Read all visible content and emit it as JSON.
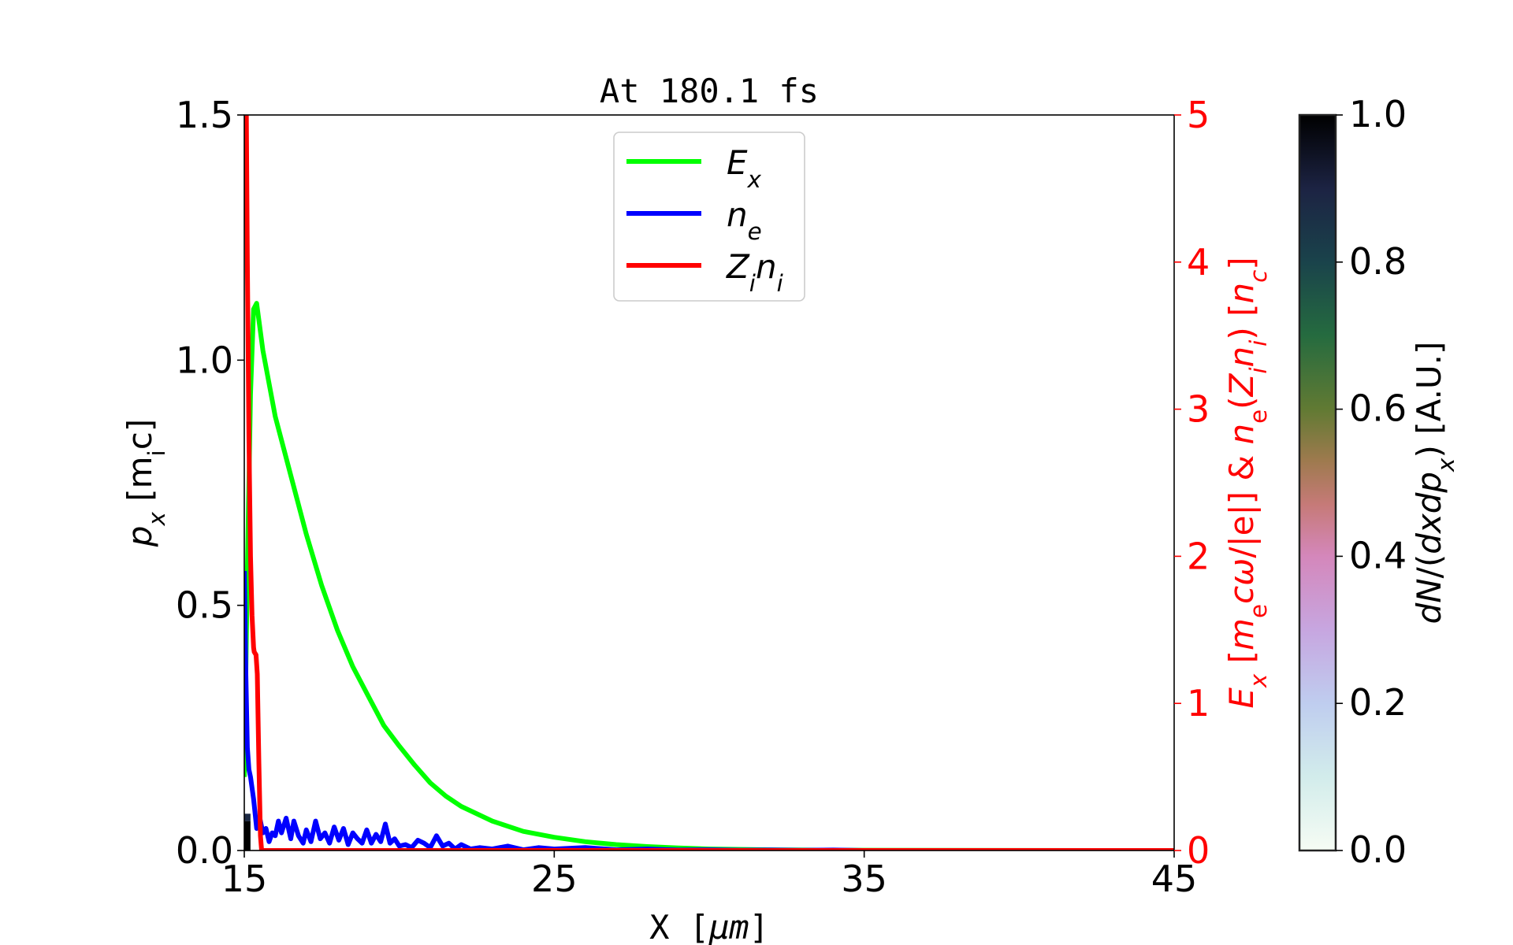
{
  "chart_data": {
    "type": "line",
    "title": "At 180.1 fs",
    "xlabel": [
      {
        "t": "X  ["
      },
      {
        "t": "μm",
        "it": true
      },
      {
        "t": "]"
      }
    ],
    "ylabel_left": [
      {
        "t": "p",
        "it": true
      },
      {
        "t": "x",
        "it": true,
        "sub": true
      },
      {
        "t": "  [m"
      },
      {
        "t": "i",
        "sub": true
      },
      {
        "t": "c]"
      }
    ],
    "ylabel_right": [
      {
        "t": "E",
        "it": true
      },
      {
        "t": "x",
        "it": true,
        "sub": true
      },
      {
        "t": "  ["
      },
      {
        "t": "m",
        "it": true
      },
      {
        "t": "e",
        "sub": true
      },
      {
        "t": "cω",
        "it": true
      },
      {
        "t": "/|e|]  &  "
      },
      {
        "t": "n",
        "it": true
      },
      {
        "t": "e",
        "sub": true
      },
      {
        "t": "("
      },
      {
        "t": "Z",
        "it": true
      },
      {
        "t": "i",
        "it": true,
        "sub": true
      },
      {
        "t": "n",
        "it": true
      },
      {
        "t": "i",
        "it": true,
        "sub": true
      },
      {
        "t": ")  ["
      },
      {
        "t": "n",
        "it": true
      },
      {
        "t": "c",
        "it": true,
        "sub": true
      },
      {
        "t": "]"
      }
    ],
    "colorbar_label": [
      {
        "t": "dN",
        "it": true
      },
      {
        "t": "/("
      },
      {
        "t": "dxdp",
        "it": true
      },
      {
        "t": "x",
        "it": true,
        "sub": true
      },
      {
        "t": ")  [A.U.]"
      }
    ],
    "xlim": [
      15,
      45
    ],
    "ylim_left": [
      0,
      1.5
    ],
    "ylim_right": [
      0,
      5
    ],
    "colorbar_lim": [
      0,
      1
    ],
    "colormap": "cubehelix_r",
    "xticks": [
      "15",
      "25",
      "35",
      "45"
    ],
    "xtick_values": [
      15,
      25,
      35,
      45
    ],
    "yticks_left": [
      "0.0",
      "0.5",
      "1.0",
      "1.5"
    ],
    "ytick_left_values": [
      0,
      0.5,
      1.0,
      1.5
    ],
    "yticks_right": [
      "0",
      "1",
      "2",
      "3",
      "4",
      "5"
    ],
    "ytick_right_values": [
      0,
      1,
      2,
      3,
      4,
      5
    ],
    "colorbar_ticks": [
      "0.0",
      "0.2",
      "0.4",
      "0.6",
      "0.8",
      "1.0"
    ],
    "colorbar_tick_values": [
      0,
      0.2,
      0.4,
      0.6,
      0.8,
      1.0
    ],
    "right_axis_color": "#ff0000",
    "legend_position": "top-center",
    "series": [
      {
        "name": [
          {
            "t": "E",
            "it": true
          },
          {
            "t": "x",
            "it": true,
            "sub": true
          }
        ],
        "axis": "right",
        "color": "#00ff00",
        "x": [
          15.0,
          15.1,
          15.2,
          15.3,
          15.4,
          15.6,
          16,
          16.5,
          17,
          17.5,
          18,
          18.5,
          19,
          19.5,
          20,
          20.5,
          21,
          21.5,
          22,
          23,
          24,
          25,
          26,
          27,
          28,
          29,
          30,
          32,
          34,
          36,
          45
        ],
        "y": [
          0.5,
          1.9,
          3.1,
          3.68,
          3.72,
          3.4,
          2.95,
          2.55,
          2.15,
          1.8,
          1.5,
          1.25,
          1.05,
          0.85,
          0.71,
          0.58,
          0.46,
          0.37,
          0.3,
          0.2,
          0.13,
          0.09,
          0.06,
          0.04,
          0.027,
          0.017,
          0.01,
          0.005,
          0.002,
          0.001,
          0
        ]
      },
      {
        "name": [
          {
            "t": "n",
            "it": true
          },
          {
            "t": "e",
            "it": true,
            "sub": true
          }
        ],
        "axis": "right",
        "color": "#0000ff",
        "x": [
          15.0,
          15.05,
          15.1,
          15.15,
          15.2,
          15.3,
          15.4,
          15.5,
          15.6,
          15.7,
          15.8,
          15.9,
          16.0,
          16.1,
          16.2,
          16.35,
          16.5,
          16.6,
          16.75,
          16.9,
          17.0,
          17.15,
          17.3,
          17.45,
          17.6,
          17.75,
          17.9,
          18.05,
          18.2,
          18.35,
          18.5,
          18.65,
          18.8,
          18.95,
          19.1,
          19.25,
          19.4,
          19.55,
          19.7,
          19.85,
          20.0,
          20.2,
          20.4,
          20.6,
          20.8,
          21.0,
          21.2,
          21.4,
          21.6,
          21.8,
          22.0,
          22.3,
          22.6,
          23,
          23.5,
          24,
          24.5,
          25,
          26,
          27,
          28,
          29,
          30,
          31,
          32,
          33,
          34,
          35,
          45
        ],
        "y": [
          1.9,
          1.2,
          0.7,
          0.55,
          0.5,
          0.35,
          0.15,
          0.22,
          0.12,
          0.15,
          0.06,
          0.12,
          0.1,
          0.2,
          0.12,
          0.22,
          0.08,
          0.2,
          0.1,
          0.05,
          0.14,
          0.06,
          0.2,
          0.08,
          0.12,
          0.05,
          0.16,
          0.07,
          0.15,
          0.04,
          0.12,
          0.08,
          0.05,
          0.14,
          0.05,
          0.11,
          0.06,
          0.18,
          0.05,
          0.08,
          0.03,
          0.04,
          0.02,
          0.07,
          0.05,
          0.02,
          0.1,
          0.03,
          0.05,
          0.01,
          0.04,
          0.01,
          0.02,
          0.01,
          0.03,
          0.005,
          0.02,
          0.01,
          0.02,
          0.005,
          0.01,
          0.003,
          0.005,
          0.002,
          0.003,
          0.001,
          0.003,
          0,
          0
        ]
      },
      {
        "name": [
          {
            "t": "Z",
            "it": true
          },
          {
            "t": "i",
            "it": true,
            "sub": true
          },
          {
            "t": "n",
            "it": true
          },
          {
            "t": "i",
            "it": true,
            "sub": true
          }
        ],
        "axis": "right",
        "color": "#ff0000",
        "x": [
          15.0,
          15.05,
          15.1,
          15.15,
          15.2,
          15.25,
          15.3,
          15.32,
          15.38,
          15.42,
          15.47,
          15.52,
          15.56,
          45
        ],
        "y": [
          6,
          5.5,
          4.0,
          2.8,
          2.0,
          1.6,
          1.38,
          1.35,
          1.33,
          1.2,
          0.6,
          0.1,
          0,
          0
        ]
      }
    ],
    "phase_space_cells": [
      {
        "x": [
          15.0,
          15.2
        ],
        "px": [
          0,
          0.06
        ],
        "value": 1.0
      },
      {
        "x": [
          15.0,
          15.2
        ],
        "px": [
          0.06,
          0.075
        ],
        "value": 0.85
      },
      {
        "x": [
          15.3,
          15.42
        ],
        "px": [
          0.07,
          0.08
        ],
        "value": 0.2
      }
    ]
  }
}
